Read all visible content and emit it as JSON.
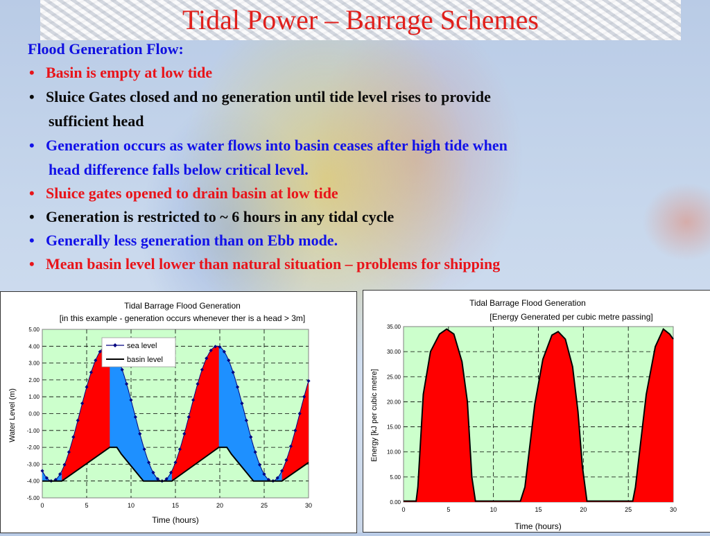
{
  "slide": {
    "title": "Tidal Power – Barrage Schemes",
    "heading": "Flood Generation Flow:",
    "bullet_glyph": "•",
    "bullets": [
      {
        "line1": "Basin is empty at low tide",
        "line2": "",
        "color": "#e8141a"
      },
      {
        "line1": "Sluice Gates closed and no generation until tide level rises to provide",
        "line2": "sufficient head",
        "color": "#0a0a0a"
      },
      {
        "line1": "Generation occurs as water flows into basin ceases after high tide when",
        "line2": "head difference falls below critical level.",
        "color": "#1212e8"
      },
      {
        "line1": "Sluice gates opened to drain basin at low tide",
        "line2": "",
        "color": "#e8141a"
      },
      {
        "line1": "Generation is restricted to ~ 6 hours in any tidal cycle",
        "line2": "",
        "color": "#0a0a0a"
      },
      {
        "line1": "Generally less generation than on Ebb mode.",
        "line2": "",
        "color": "#1212e8"
      },
      {
        "line1": " Mean basin level lower than natural situation – problems for shipping",
        "line2": "",
        "color": "#e8141a"
      }
    ]
  },
  "colors": {
    "title": "#e0201c",
    "plot_bg": "#ccffcc",
    "generation_fill": "#ff0000",
    "head_fill": "#1e90ff",
    "sea_line": "#000080",
    "basin_line": "#000000"
  },
  "chart_data": [
    {
      "type": "line",
      "title": "Tidal Barrage Flood Generation",
      "subtitle": "[in this example - generation occurs whenever ther is a head > 3m]",
      "xlabel": "Time (hours)",
      "ylabel": "Water Level (m)",
      "xlim": [
        0,
        30
      ],
      "ylim": [
        -5,
        5
      ],
      "x_ticks": [
        0,
        5,
        10,
        15,
        20,
        25,
        30
      ],
      "y_ticks": [
        5,
        4,
        3,
        2,
        1,
        0,
        -1,
        -2,
        -3,
        -4,
        -5
      ],
      "y_tick_labels": [
        "5.00",
        "4.00",
        "3.00",
        "2.00",
        "1.00",
        "0.00",
        "-1.00",
        "-2.00",
        "-3.00",
        "-4.00",
        "-5.00"
      ],
      "grid": true,
      "legend_position": "top-center",
      "series": [
        {
          "name": "sea level",
          "model": "-4*cos(2*pi*(t-1.1)/12.4)",
          "marker": "diamond"
        },
        {
          "name": "basin level",
          "x": [
            0,
            2.2,
            7.6,
            8.4,
            8.9,
            11.4,
            14.6,
            19.9,
            20.8,
            21.3,
            23.8,
            27.0,
            30.0
          ],
          "y": [
            -4.0,
            -4.0,
            -2.0,
            -2.0,
            -2.4,
            -4.0,
            -4.0,
            -2.0,
            -2.0,
            -2.4,
            -4.0,
            -4.0,
            -2.9
          ]
        }
      ],
      "generation_periods": [
        [
          2.2,
          7.6
        ],
        [
          14.6,
          19.9
        ],
        [
          27.0,
          30.0
        ]
      ]
    },
    {
      "type": "area",
      "title": "Tidal Barrage Flood  Generation",
      "subtitle": "[Energy Generated per cubic metre passing]",
      "xlabel": "Time (hours)",
      "ylabel": "Energy [kJ per cubic metre]",
      "xlim": [
        0,
        30
      ],
      "ylim": [
        0,
        35
      ],
      "x_ticks": [
        0,
        5,
        10,
        15,
        20,
        25,
        30
      ],
      "y_ticks": [
        0,
        5,
        10,
        15,
        20,
        25,
        30,
        35
      ],
      "y_tick_labels": [
        "0.00",
        "5.00",
        "10.00",
        "15.00",
        "20.00",
        "25.00",
        "30.00",
        "35.00"
      ],
      "grid": true,
      "series": [
        {
          "name": "",
          "x": [
            0,
            1.4,
            1.6,
            2.2,
            3,
            4,
            4.8,
            5.6,
            6.5,
            7.1,
            7.6,
            8.0,
            13.0,
            13.5,
            14.6,
            15.5,
            16.5,
            17.2,
            18.0,
            18.8,
            19.4,
            19.9,
            20.4,
            25.5,
            25.8,
            27.0,
            28.0,
            28.9,
            29.6,
            30.0
          ],
          "y": [
            0.2,
            0.2,
            3,
            21.5,
            30,
            33.5,
            34.5,
            33.5,
            28,
            20,
            5,
            0.2,
            0.2,
            3,
            19.5,
            28.5,
            33.3,
            34,
            32.5,
            27,
            18,
            7,
            0.2,
            0.2,
            3,
            21.5,
            31,
            34.5,
            33.5,
            32.5
          ]
        }
      ]
    }
  ]
}
